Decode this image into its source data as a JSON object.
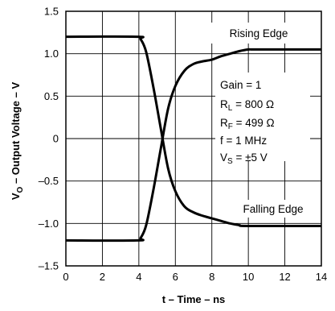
{
  "chart_data": {
    "type": "line",
    "xlabel": "t – Time – ns",
    "ylabel_main": "V",
    "ylabel_sub": "O",
    "ylabel_rest": " – Output Voltage – V",
    "xlim": [
      0,
      14
    ],
    "ylim": [
      -1.5,
      1.5
    ],
    "x_ticks": [
      0,
      2,
      4,
      6,
      8,
      10,
      12,
      14
    ],
    "x_tick_labels": [
      "0",
      "2",
      "4",
      "6",
      "8",
      "10",
      "12",
      "14"
    ],
    "y_ticks": [
      1.5,
      1.0,
      0.5,
      0,
      -0.5,
      -1.0,
      -1.5
    ],
    "y_tick_labels": [
      "1.5",
      "1.0",
      "0.5",
      "0",
      "–0.5",
      "–1.0",
      "–1.5"
    ],
    "grid": true,
    "series": [
      {
        "name": "Rising Edge",
        "x": [
          0,
          3.9,
          4.1,
          4.4,
          4.8,
          5.2,
          5.6,
          6.0,
          6.5,
          7.0,
          7.5,
          8.0,
          8.5,
          9.0,
          9.5,
          10.0,
          10.5,
          14
        ],
        "y": [
          -1.2,
          -1.2,
          -1.17,
          -1.02,
          -0.6,
          -0.12,
          0.35,
          0.62,
          0.8,
          0.88,
          0.91,
          0.93,
          0.97,
          1.0,
          1.03,
          1.05,
          1.05,
          1.05
        ]
      },
      {
        "name": "Falling Edge",
        "x": [
          0,
          3.9,
          4.1,
          4.4,
          4.8,
          5.2,
          5.6,
          6.0,
          6.5,
          7.0,
          7.5,
          8.0,
          8.5,
          9.0,
          9.5,
          10.0,
          14
        ],
        "y": [
          1.2,
          1.2,
          1.17,
          1.02,
          0.6,
          0.12,
          -0.35,
          -0.62,
          -0.8,
          -0.87,
          -0.91,
          -0.94,
          -0.97,
          -1.0,
          -1.02,
          -1.03,
          -1.03
        ]
      }
    ],
    "annotations": {
      "rising": "Rising Edge",
      "falling": "Falling Edge",
      "gain": "Gain = 1",
      "rl_main": "R",
      "rl_sub": "L",
      "rl_rest": " = 800 Ω",
      "rf_main": "R",
      "rf_sub": "F",
      "rf_rest": " = 499 Ω",
      "freq": "f = 1 MHz",
      "vs_main": "V",
      "vs_sub": "S",
      "vs_rest": " = ±5 V"
    }
  }
}
